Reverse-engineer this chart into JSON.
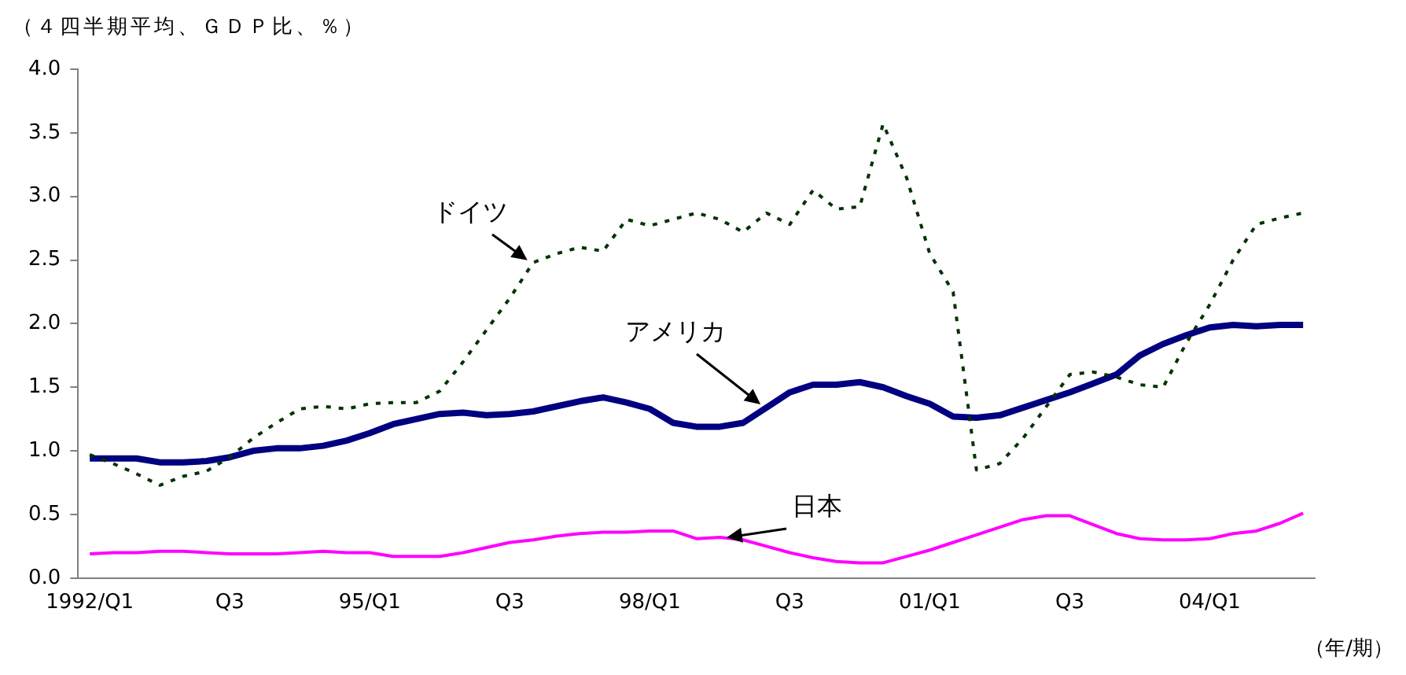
{
  "chart_data": {
    "type": "line",
    "title": "（４四半期平均、ＧＤＰ比、％）",
    "xlabel": "（年/期）",
    "categories": [
      "1992/Q1",
      null,
      null,
      null,
      null,
      null,
      "Q3",
      null,
      null,
      null,
      null,
      null,
      "95/Q1",
      null,
      null,
      null,
      null,
      null,
      "Q3",
      null,
      null,
      null,
      null,
      null,
      "98/Q1",
      null,
      null,
      null,
      null,
      null,
      "Q3",
      null,
      null,
      null,
      null,
      null,
      "01/Q1",
      null,
      null,
      null,
      null,
      null,
      "Q3",
      null,
      null,
      null,
      null,
      null,
      "04/Q1",
      null,
      null,
      null,
      null
    ],
    "series": [
      {
        "name": "ドイツ",
        "color": "#003300",
        "line_style": "dotted",
        "values": [
          0.97,
          0.9,
          0.82,
          0.73,
          0.8,
          0.84,
          0.95,
          1.1,
          1.22,
          1.33,
          1.35,
          1.33,
          1.37,
          1.38,
          1.38,
          1.47,
          1.7,
          1.95,
          2.2,
          2.48,
          2.55,
          2.6,
          2.57,
          2.82,
          2.77,
          2.82,
          2.87,
          2.82,
          2.72,
          2.87,
          2.78,
          3.05,
          2.9,
          2.92,
          3.57,
          3.15,
          2.55,
          2.25,
          0.85,
          0.9,
          1.1,
          1.35,
          1.6,
          1.62,
          1.58,
          1.52,
          1.5,
          1.85,
          2.15,
          2.5,
          2.78,
          2.83,
          2.87
        ]
      },
      {
        "name": "アメリカ",
        "color": "#000080",
        "line_style": "solid",
        "values": [
          0.94,
          0.94,
          0.94,
          0.91,
          0.91,
          0.92,
          0.95,
          1.0,
          1.02,
          1.02,
          1.04,
          1.08,
          1.14,
          1.21,
          1.25,
          1.29,
          1.3,
          1.28,
          1.29,
          1.31,
          1.35,
          1.39,
          1.42,
          1.38,
          1.33,
          1.22,
          1.19,
          1.19,
          1.22,
          1.34,
          1.46,
          1.52,
          1.52,
          1.54,
          1.5,
          1.43,
          1.37,
          1.27,
          1.26,
          1.28,
          1.34,
          1.4,
          1.46,
          1.53,
          1.6,
          1.75,
          1.84,
          1.91,
          1.97,
          1.99,
          1.98,
          1.99,
          1.99
        ]
      },
      {
        "name": "日本",
        "color": "#ff00ff",
        "line_style": "solid",
        "values": [
          0.19,
          0.2,
          0.2,
          0.21,
          0.21,
          0.2,
          0.19,
          0.19,
          0.19,
          0.2,
          0.21,
          0.2,
          0.2,
          0.17,
          0.17,
          0.17,
          0.2,
          0.24,
          0.28,
          0.3,
          0.33,
          0.35,
          0.36,
          0.36,
          0.37,
          0.37,
          0.31,
          0.32,
          0.3,
          0.25,
          0.2,
          0.16,
          0.13,
          0.12,
          0.12,
          0.17,
          0.22,
          0.28,
          0.34,
          0.4,
          0.46,
          0.49,
          0.49,
          0.42,
          0.35,
          0.31,
          0.3,
          0.3,
          0.31,
          0.35,
          0.37,
          0.43,
          0.51
        ]
      }
    ],
    "ylim": [
      0,
      4
    ],
    "yticks": [
      {
        "value": 0,
        "label": "0.0"
      },
      {
        "value": 0.5,
        "label": "0.5"
      },
      {
        "value": 1,
        "label": "1.0"
      },
      {
        "value": 1.5,
        "label": "1.5"
      },
      {
        "value": 2,
        "label": "2.0"
      },
      {
        "value": 2.5,
        "label": "2.5"
      },
      {
        "value": 3,
        "label": "3.0"
      },
      {
        "value": 3.5,
        "label": "3.5"
      },
      {
        "value": 4,
        "label": "4.0"
      }
    ],
    "grid": false,
    "legend": false
  }
}
